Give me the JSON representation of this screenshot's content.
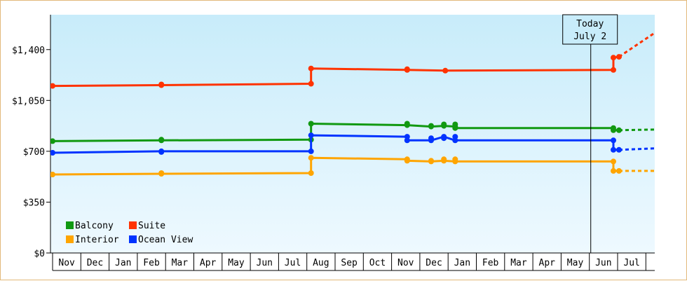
{
  "chart_data": {
    "type": "line",
    "title": "",
    "xlabel": "",
    "ylabel": "",
    "ylim": [
      0,
      1640
    ],
    "y_ticks": [
      {
        "value": 0,
        "label": "$0"
      },
      {
        "value": 350,
        "label": "$350"
      },
      {
        "value": 700,
        "label": "$700"
      },
      {
        "value": 1050,
        "label": "$1,050"
      },
      {
        "value": 1400,
        "label": "$1,400"
      }
    ],
    "x_axis": {
      "start_month_index": 0,
      "months": [
        "Nov",
        "Dec",
        "Jan",
        "Feb",
        "Mar",
        "Apr",
        "May",
        "Jun",
        "Jul",
        "Aug",
        "Sep",
        "Oct",
        "Nov",
        "Dec",
        "Jan",
        "Feb",
        "Mar",
        "Apr",
        "May",
        "Jun",
        "Jul"
      ]
    },
    "today": {
      "line1": "Today",
      "line2": "July 2",
      "x": 19.05
    },
    "legend": {
      "placement": "bottom-left",
      "entries": [
        {
          "name": "Balcony",
          "color": "#119911"
        },
        {
          "name": "Suite",
          "color": "#ff3300"
        },
        {
          "name": "Interior",
          "color": "#ffa500"
        },
        {
          "name": "Ocean View",
          "color": "#0033ff"
        }
      ]
    },
    "series": [
      {
        "name": "Suite",
        "color": "#ff3300",
        "points": [
          [
            0.0,
            1150
          ],
          [
            3.85,
            1155
          ],
          [
            9.15,
            1165
          ],
          [
            9.15,
            1270
          ],
          [
            12.55,
            1260
          ],
          [
            13.9,
            1255
          ],
          [
            19.85,
            1260
          ],
          [
            19.85,
            1345
          ],
          [
            20.05,
            1350
          ]
        ],
        "markers": [
          [
            0.0,
            1150
          ],
          [
            3.85,
            1155
          ],
          [
            3.85,
            1160
          ],
          [
            9.15,
            1165
          ],
          [
            9.15,
            1270
          ],
          [
            12.55,
            1260
          ],
          [
            12.55,
            1265
          ],
          [
            13.9,
            1255
          ],
          [
            19.85,
            1260
          ],
          [
            19.85,
            1345
          ],
          [
            20.05,
            1350
          ]
        ],
        "projection": [
          [
            20.05,
            1350
          ],
          [
            21.35,
            1520
          ]
        ]
      },
      {
        "name": "Balcony",
        "color": "#119911",
        "points": [
          [
            0.0,
            770
          ],
          [
            3.85,
            775
          ],
          [
            9.15,
            780
          ],
          [
            9.15,
            890
          ],
          [
            12.55,
            880
          ],
          [
            13.4,
            870
          ],
          [
            13.85,
            875
          ],
          [
            14.25,
            870
          ],
          [
            14.25,
            860
          ],
          [
            19.85,
            860
          ],
          [
            19.85,
            845
          ],
          [
            20.05,
            845
          ]
        ],
        "markers": [
          [
            0.0,
            770
          ],
          [
            3.85,
            775
          ],
          [
            3.85,
            780
          ],
          [
            9.15,
            780
          ],
          [
            9.15,
            890
          ],
          [
            12.55,
            880
          ],
          [
            12.55,
            890
          ],
          [
            13.4,
            870
          ],
          [
            13.4,
            875
          ],
          [
            13.85,
            875
          ],
          [
            13.85,
            885
          ],
          [
            14.25,
            870
          ],
          [
            14.25,
            885
          ],
          [
            14.25,
            860
          ],
          [
            19.85,
            860
          ],
          [
            19.85,
            845
          ],
          [
            20.05,
            845
          ]
        ],
        "projection": [
          [
            20.05,
            845
          ],
          [
            21.35,
            850
          ]
        ]
      },
      {
        "name": "Ocean View",
        "color": "#0033ff",
        "points": [
          [
            0.0,
            690
          ],
          [
            3.85,
            700
          ],
          [
            9.15,
            700
          ],
          [
            9.15,
            810
          ],
          [
            12.55,
            800
          ],
          [
            12.55,
            775
          ],
          [
            13.4,
            775
          ],
          [
            13.85,
            800
          ],
          [
            14.25,
            775
          ],
          [
            19.85,
            775
          ],
          [
            19.85,
            710
          ],
          [
            20.05,
            710
          ]
        ],
        "markers": [
          [
            0.0,
            690
          ],
          [
            3.85,
            695
          ],
          [
            3.85,
            700
          ],
          [
            9.15,
            700
          ],
          [
            9.15,
            810
          ],
          [
            12.55,
            800
          ],
          [
            12.55,
            775
          ],
          [
            13.4,
            775
          ],
          [
            13.4,
            790
          ],
          [
            13.85,
            800
          ],
          [
            13.85,
            790
          ],
          [
            14.25,
            800
          ],
          [
            14.25,
            775
          ],
          [
            19.85,
            775
          ],
          [
            19.85,
            710
          ],
          [
            20.05,
            710
          ]
        ],
        "projection": [
          [
            20.05,
            710
          ],
          [
            21.35,
            720
          ]
        ]
      },
      {
        "name": "Interior",
        "color": "#ffa500",
        "points": [
          [
            0.0,
            540
          ],
          [
            3.85,
            545
          ],
          [
            9.15,
            550
          ],
          [
            9.15,
            655
          ],
          [
            12.55,
            645
          ],
          [
            12.55,
            635
          ],
          [
            13.4,
            630
          ],
          [
            13.85,
            635
          ],
          [
            14.25,
            630
          ],
          [
            19.85,
            630
          ],
          [
            19.85,
            565
          ],
          [
            20.05,
            565
          ]
        ],
        "markers": [
          [
            0.0,
            540
          ],
          [
            3.85,
            545
          ],
          [
            3.85,
            550
          ],
          [
            9.15,
            550
          ],
          [
            9.15,
            655
          ],
          [
            12.55,
            645
          ],
          [
            12.55,
            635
          ],
          [
            13.4,
            630
          ],
          [
            13.4,
            635
          ],
          [
            13.85,
            635
          ],
          [
            13.85,
            645
          ],
          [
            14.25,
            645
          ],
          [
            14.25,
            630
          ],
          [
            19.85,
            630
          ],
          [
            19.85,
            565
          ],
          [
            20.05,
            565
          ]
        ],
        "projection": [
          [
            20.05,
            565
          ],
          [
            21.35,
            565
          ]
        ]
      }
    ]
  }
}
